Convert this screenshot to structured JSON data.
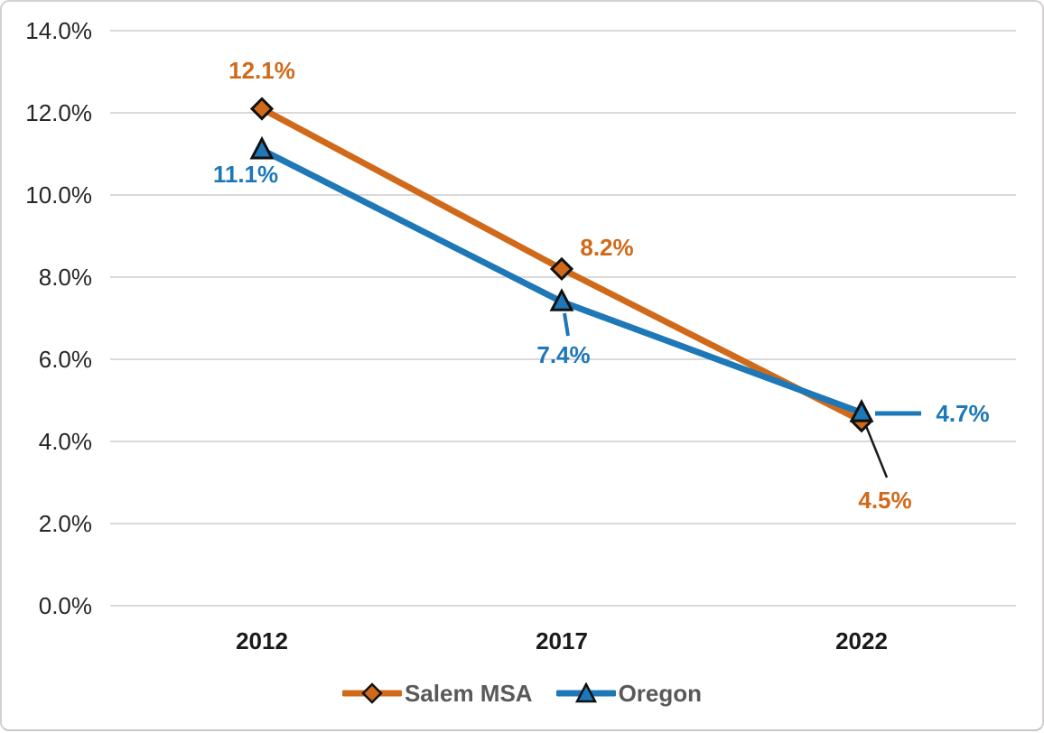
{
  "chart_data": {
    "type": "line",
    "title": "",
    "categories": [
      "2012",
      "2017",
      "2022"
    ],
    "y_axis": {
      "min": 0,
      "max": 14,
      "step": 2,
      "tick_labels": [
        "0.0%",
        "2.0%",
        "4.0%",
        "6.0%",
        "8.0%",
        "10.0%",
        "12.0%",
        "14.0%"
      ]
    },
    "grid": true,
    "legend_position": "bottom",
    "series": [
      {
        "name": "Salem MSA",
        "color": "#D06A1A",
        "marker": "diamond",
        "values": [
          12.1,
          8.2,
          4.5
        ],
        "labels": [
          "12.1%",
          "8.2%",
          "4.5%"
        ]
      },
      {
        "name": "Oregon",
        "color": "#1E78B8",
        "marker": "triangle",
        "values": [
          11.1,
          7.4,
          4.7
        ],
        "labels": [
          "11.1%",
          "7.4%",
          "4.7%"
        ]
      }
    ]
  },
  "colors": {
    "grid": "#D9D9D9",
    "axis_text": "#262626",
    "x_axis_text": "#1A1A1A",
    "legend_text": "#595959",
    "marker_outline": "#111111",
    "leader_black": "#1A1A1A",
    "frame_border": "#D3D0D0",
    "background": "#FFFFFF"
  }
}
